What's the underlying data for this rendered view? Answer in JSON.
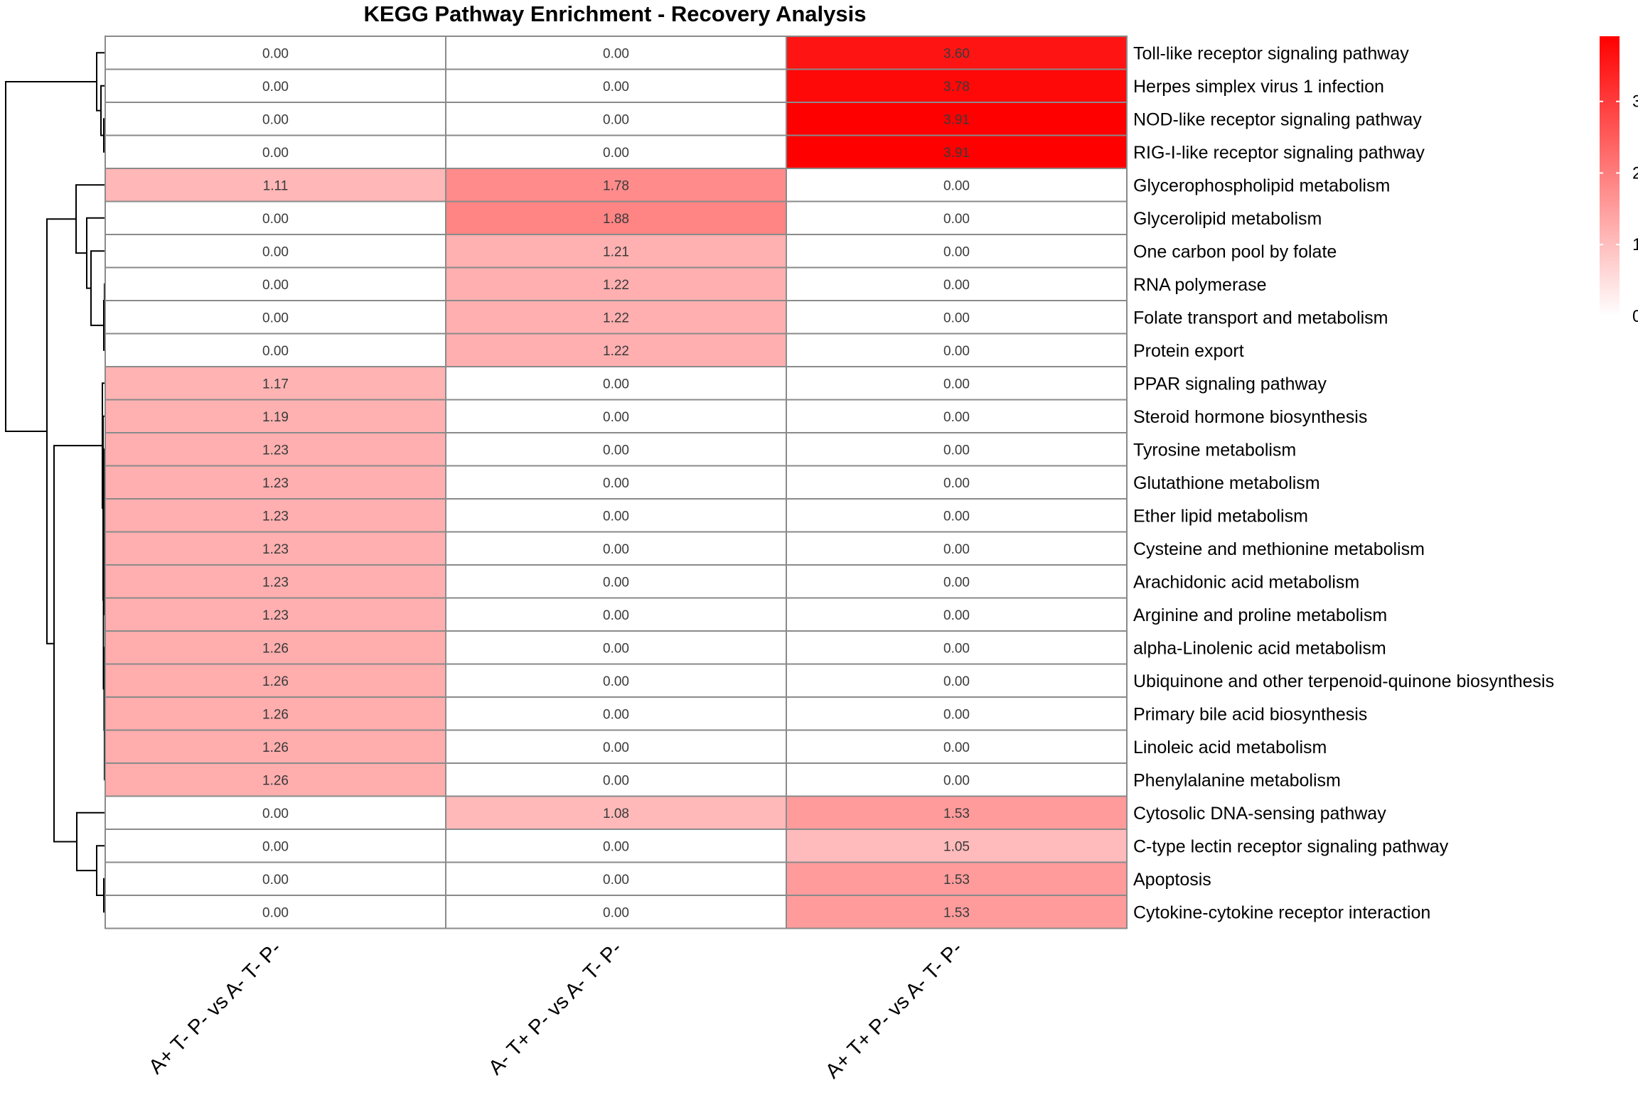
{
  "chart_data": {
    "type": "heatmap",
    "title": "KEGG Pathway Enrichment - Recovery Analysis",
    "columns": [
      "A+ T- P- vs A- T- P-",
      "A- T+ P- vs A- T- P-",
      "A+ T+ P- vs A- T- P-"
    ],
    "rows": [
      "Toll-like receptor signaling pathway",
      "Herpes simplex virus 1 infection",
      "NOD-like receptor signaling pathway",
      "RIG-I-like receptor signaling pathway",
      "Glycerophospholipid metabolism",
      "Glycerolipid metabolism",
      "One carbon pool by folate",
      "RNA polymerase",
      "Folate transport and metabolism",
      "Protein export",
      "PPAR signaling pathway",
      "Steroid hormone biosynthesis",
      "Tyrosine metabolism",
      "Glutathione metabolism",
      "Ether lipid metabolism",
      "Cysteine and methionine metabolism",
      "Arachidonic acid metabolism",
      "Arginine and proline metabolism",
      "alpha-Linolenic acid metabolism",
      "Ubiquinone and other terpenoid-quinone biosynthesis",
      "Primary bile acid biosynthesis",
      "Linoleic acid metabolism",
      "Phenylalanine metabolism",
      "Cytosolic DNA-sensing pathway",
      "C-type lectin receptor signaling pathway",
      "Apoptosis",
      "Cytokine-cytokine receptor interaction"
    ],
    "values": [
      [
        0.0,
        0.0,
        3.6
      ],
      [
        0.0,
        0.0,
        3.78
      ],
      [
        0.0,
        0.0,
        3.91
      ],
      [
        0.0,
        0.0,
        3.91
      ],
      [
        1.11,
        1.78,
        0.0
      ],
      [
        0.0,
        1.88,
        0.0
      ],
      [
        0.0,
        1.21,
        0.0
      ],
      [
        0.0,
        1.22,
        0.0
      ],
      [
        0.0,
        1.22,
        0.0
      ],
      [
        0.0,
        1.22,
        0.0
      ],
      [
        1.17,
        0.0,
        0.0
      ],
      [
        1.19,
        0.0,
        0.0
      ],
      [
        1.23,
        0.0,
        0.0
      ],
      [
        1.23,
        0.0,
        0.0
      ],
      [
        1.23,
        0.0,
        0.0
      ],
      [
        1.23,
        0.0,
        0.0
      ],
      [
        1.23,
        0.0,
        0.0
      ],
      [
        1.23,
        0.0,
        0.0
      ],
      [
        1.26,
        0.0,
        0.0
      ],
      [
        1.26,
        0.0,
        0.0
      ],
      [
        1.26,
        0.0,
        0.0
      ],
      [
        1.26,
        0.0,
        0.0
      ],
      [
        1.26,
        0.0,
        0.0
      ],
      [
        0.0,
        1.08,
        1.53
      ],
      [
        0.0,
        0.0,
        1.05
      ],
      [
        0.0,
        0.0,
        1.53
      ],
      [
        0.0,
        0.0,
        1.53
      ]
    ],
    "color_scale": {
      "low": "#ffffff",
      "high": "#ff0000",
      "range": [
        0,
        3.91
      ],
      "ticks": [
        "0",
        "1",
        "2",
        "3"
      ]
    },
    "row_dendrogram": true,
    "legend_position": "right"
  }
}
